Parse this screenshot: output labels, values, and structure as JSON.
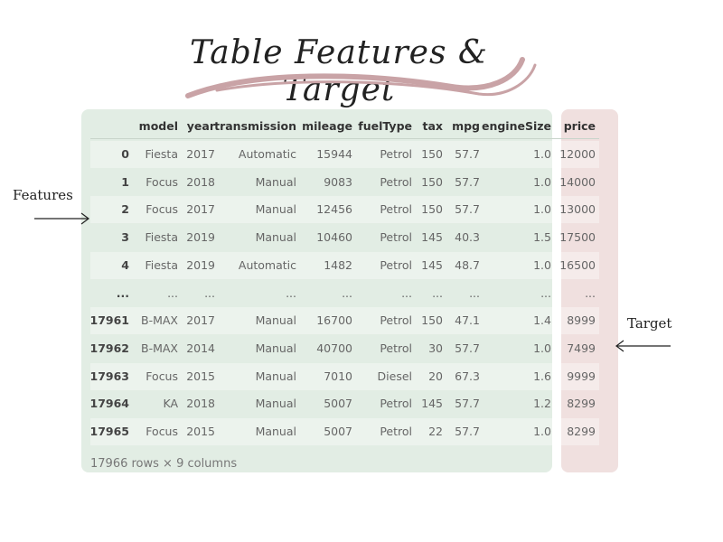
{
  "title": "Table Features & Target",
  "labels": {
    "features": "Features",
    "target": "Target"
  },
  "table": {
    "columns": [
      "model",
      "year",
      "transmission",
      "mileage",
      "fuelType",
      "tax",
      "mpg",
      "engineSize",
      "price"
    ],
    "rows": [
      {
        "index": "0",
        "cells": [
          "Fiesta",
          "2017",
          "Automatic",
          "15944",
          "Petrol",
          "150",
          "57.7",
          "1.0",
          "12000"
        ]
      },
      {
        "index": "1",
        "cells": [
          "Focus",
          "2018",
          "Manual",
          "9083",
          "Petrol",
          "150",
          "57.7",
          "1.0",
          "14000"
        ]
      },
      {
        "index": "2",
        "cells": [
          "Focus",
          "2017",
          "Manual",
          "12456",
          "Petrol",
          "150",
          "57.7",
          "1.0",
          "13000"
        ]
      },
      {
        "index": "3",
        "cells": [
          "Fiesta",
          "2019",
          "Manual",
          "10460",
          "Petrol",
          "145",
          "40.3",
          "1.5",
          "17500"
        ]
      },
      {
        "index": "4",
        "cells": [
          "Fiesta",
          "2019",
          "Automatic",
          "1482",
          "Petrol",
          "145",
          "48.7",
          "1.0",
          "16500"
        ]
      },
      {
        "index": "...",
        "cells": [
          "...",
          "...",
          "...",
          "...",
          "...",
          "...",
          "...",
          "...",
          "..."
        ]
      },
      {
        "index": "17961",
        "cells": [
          "B-MAX",
          "2017",
          "Manual",
          "16700",
          "Petrol",
          "150",
          "47.1",
          "1.4",
          "8999"
        ]
      },
      {
        "index": "17962",
        "cells": [
          "B-MAX",
          "2014",
          "Manual",
          "40700",
          "Petrol",
          "30",
          "57.7",
          "1.0",
          "7499"
        ]
      },
      {
        "index": "17963",
        "cells": [
          "Focus",
          "2015",
          "Manual",
          "7010",
          "Diesel",
          "20",
          "67.3",
          "1.6",
          "9999"
        ]
      },
      {
        "index": "17964",
        "cells": [
          "KA",
          "2018",
          "Manual",
          "5007",
          "Petrol",
          "145",
          "57.7",
          "1.2",
          "8299"
        ]
      },
      {
        "index": "17965",
        "cells": [
          "Focus",
          "2015",
          "Manual",
          "5007",
          "Petrol",
          "22",
          "57.7",
          "1.0",
          "8299"
        ]
      }
    ],
    "footer": "17966 rows × 9 columns"
  },
  "colors": {
    "features_bg": "#e2ede4",
    "target_bg": "#f0e0df",
    "swoosh": "#c9a3a6"
  }
}
